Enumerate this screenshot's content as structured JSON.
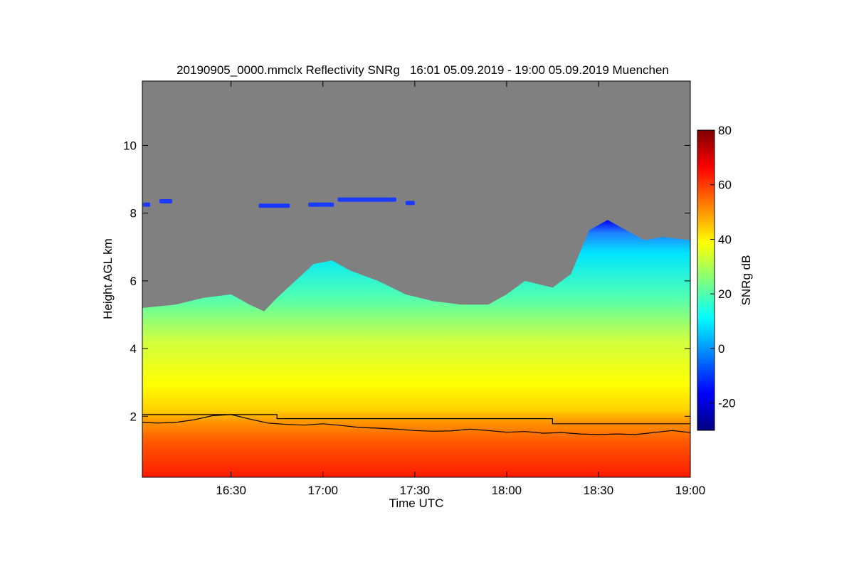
{
  "chart_data": {
    "type": "heatmap",
    "title": "20190905_0000.mmclx Reflectivity SNRg   16:01 05.09.2019 - 19:00 05.09.2019 Muenchen",
    "xlabel": "Time UTC",
    "ylabel": "Height AGL km",
    "x_unit": "hours UTC",
    "xlim": [
      16.017,
      19.0
    ],
    "ylim": [
      0.2,
      11.9
    ],
    "x_ticks": [
      {
        "value": 16.5,
        "label": "16:30"
      },
      {
        "value": 17.0,
        "label": "17:00"
      },
      {
        "value": 17.5,
        "label": "17:30"
      },
      {
        "value": 18.0,
        "label": "18:00"
      },
      {
        "value": 18.5,
        "label": "18:30"
      },
      {
        "value": 19.0,
        "label": "19:00"
      }
    ],
    "y_ticks": [
      {
        "value": 2,
        "label": "2"
      },
      {
        "value": 4,
        "label": "4"
      },
      {
        "value": 6,
        "label": "6"
      },
      {
        "value": 8,
        "label": "8"
      },
      {
        "value": 10,
        "label": "10"
      }
    ],
    "colorbar": {
      "label": "SNRg dB",
      "range": [
        -30,
        80
      ],
      "ticks": [
        {
          "value": -20,
          "label": "-20"
        },
        {
          "value": 0,
          "label": "0"
        },
        {
          "value": 20,
          "label": "20"
        },
        {
          "value": 40,
          "label": "40"
        },
        {
          "value": 60,
          "label": "60"
        },
        {
          "value": 80,
          "label": "80"
        }
      ],
      "colormap": [
        "#00007f",
        "#0000ff",
        "#007fff",
        "#00ffff",
        "#7fff7f",
        "#ffff00",
        "#ff7f00",
        "#ff0000",
        "#7f0000"
      ]
    },
    "background_color": "#808080",
    "cloud_top_km": [
      [
        16.017,
        5.2
      ],
      [
        16.2,
        5.3
      ],
      [
        16.35,
        5.5
      ],
      [
        16.5,
        5.6
      ],
      [
        16.6,
        5.3
      ],
      [
        16.68,
        5.1
      ],
      [
        16.75,
        5.5
      ],
      [
        16.85,
        6.0
      ],
      [
        16.95,
        6.5
      ],
      [
        17.05,
        6.6
      ],
      [
        17.15,
        6.3
      ],
      [
        17.3,
        6.0
      ],
      [
        17.45,
        5.6
      ],
      [
        17.6,
        5.4
      ],
      [
        17.75,
        5.3
      ],
      [
        17.9,
        5.3
      ],
      [
        18.0,
        5.6
      ],
      [
        18.1,
        6.0
      ],
      [
        18.25,
        5.8
      ],
      [
        18.35,
        6.2
      ],
      [
        18.45,
        7.5
      ],
      [
        18.55,
        7.8
      ],
      [
        18.65,
        7.5
      ],
      [
        18.75,
        7.2
      ],
      [
        18.85,
        7.3
      ],
      [
        19.0,
        7.2
      ]
    ],
    "upper_cloud_patches": [
      {
        "x0": 16.02,
        "x1": 16.06,
        "height_km": 8.25
      },
      {
        "x0": 16.11,
        "x1": 16.18,
        "height_km": 8.35
      },
      {
        "x0": 16.65,
        "x1": 16.82,
        "height_km": 8.22
      },
      {
        "x0": 16.92,
        "x1": 17.06,
        "height_km": 8.25
      },
      {
        "x0": 17.08,
        "x1": 17.4,
        "height_km": 8.4
      },
      {
        "x0": 17.45,
        "x1": 17.5,
        "height_km": 8.3
      }
    ],
    "layer_step_km": [
      [
        16.017,
        2.05
      ],
      [
        16.75,
        2.05
      ],
      [
        16.75,
        1.93
      ],
      [
        18.25,
        1.93
      ],
      [
        18.25,
        1.78
      ],
      [
        19.0,
        1.78
      ]
    ],
    "layer_line_km": [
      [
        16.017,
        1.82
      ],
      [
        16.1,
        1.8
      ],
      [
        16.2,
        1.82
      ],
      [
        16.3,
        1.9
      ],
      [
        16.4,
        2.02
      ],
      [
        16.5,
        2.05
      ],
      [
        16.6,
        1.92
      ],
      [
        16.7,
        1.8
      ],
      [
        16.8,
        1.76
      ],
      [
        16.9,
        1.74
      ],
      [
        17.0,
        1.78
      ],
      [
        17.1,
        1.73
      ],
      [
        17.2,
        1.67
      ],
      [
        17.3,
        1.65
      ],
      [
        17.4,
        1.62
      ],
      [
        17.5,
        1.58
      ],
      [
        17.6,
        1.56
      ],
      [
        17.7,
        1.57
      ],
      [
        17.8,
        1.62
      ],
      [
        17.9,
        1.58
      ],
      [
        18.0,
        1.53
      ],
      [
        18.1,
        1.55
      ],
      [
        18.2,
        1.5
      ],
      [
        18.3,
        1.52
      ],
      [
        18.4,
        1.48
      ],
      [
        18.5,
        1.46
      ],
      [
        18.6,
        1.48
      ],
      [
        18.7,
        1.46
      ],
      [
        18.8,
        1.52
      ],
      [
        18.9,
        1.58
      ],
      [
        19.0,
        1.52
      ]
    ]
  }
}
